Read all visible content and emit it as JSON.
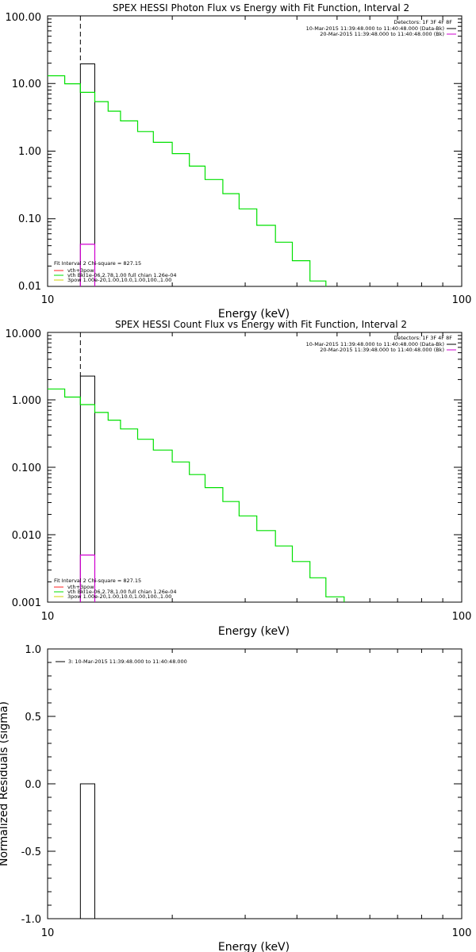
{
  "chart_data": [
    {
      "type": "line",
      "title": "SPEX HESSI Photon Flux vs Energy with Fit Function, Interval 2",
      "xlabel": "Energy (keV)",
      "ylabel": "",
      "xscale": "log",
      "yscale": "log",
      "xlim": [
        10,
        100
      ],
      "ylim": [
        0.01,
        100
      ],
      "x_ticks": [
        "10",
        "100"
      ],
      "y_ticks": [
        "0.01",
        "0.10",
        "1.00",
        "10.00",
        "100.00"
      ],
      "grid": false,
      "energy_edges": [
        10,
        11,
        12,
        13,
        14,
        15,
        16.5,
        18,
        20,
        22,
        24,
        26.5,
        29,
        32,
        35.5,
        39,
        43,
        47
      ],
      "series": [
        {
          "name": "vth BkI1e-06,2.78,1.00  full chian 1.26e-04",
          "color": "#00e000",
          "values": [
            13,
            9.9,
            7.4,
            5.4,
            3.9,
            2.8,
            1.95,
            1.35,
            0.92,
            0.6,
            0.38,
            0.235,
            0.14,
            0.08,
            0.045,
            0.024,
            0.012
          ]
        },
        {
          "name": "vth+3pow",
          "color": "#d000d0",
          "x_range": [
            12,
            13
          ],
          "values": [
            0.042
          ]
        }
      ],
      "data_bar": {
        "x_range": [
          12,
          13
        ],
        "value": 19.5
      },
      "dashed_line_x": 12,
      "legend_left": {
        "header": "Fit Interval 2   Chi-square = 827.15",
        "entries": [
          {
            "label": "vth+3pow",
            "color": "#ff2020"
          },
          {
            "label": "vth BkI1e-06,2.78,1.00  full chian 1.26e-04",
            "color": "#00e000"
          },
          {
            "label": "3pow  1.00e-20,1.00,10.0,1.00,100.,1.00",
            "color": "#d0d000"
          }
        ]
      },
      "legend_right": {
        "header": "Detectors: 1F 3F 4F 8F",
        "entries": [
          {
            "label": "10-Mar-2015 11:39:48.000 to 11:40:48.000 (Data-Bk)",
            "color": "#000000"
          },
          {
            "label": "20-Mar-2015 11:39:48.000 to 11:40:48.000 (Bk)",
            "color": "#d000d0"
          }
        ]
      }
    },
    {
      "type": "line",
      "title": "SPEX HESSI Count Flux vs Energy with Fit Function, Interval 2",
      "xlabel": "Energy (keV)",
      "ylabel": "",
      "xscale": "log",
      "yscale": "log",
      "xlim": [
        10,
        100
      ],
      "ylim": [
        0.001,
        10
      ],
      "x_ticks": [
        "10",
        "100"
      ],
      "y_ticks": [
        "0.001",
        "0.010",
        "0.100",
        "1.000",
        "10.000"
      ],
      "grid": false,
      "energy_edges": [
        10,
        11,
        12,
        13,
        14,
        15,
        16.5,
        18,
        20,
        22,
        24,
        26.5,
        29,
        32,
        35.5,
        39,
        43,
        47,
        52
      ],
      "series": [
        {
          "name": "vth BkI1e-06,2.78,1.00  full chian 1.26e-04",
          "color": "#00e000",
          "values": [
            1.45,
            1.1,
            0.85,
            0.65,
            0.5,
            0.37,
            0.26,
            0.18,
            0.12,
            0.078,
            0.05,
            0.031,
            0.019,
            0.0115,
            0.0068,
            0.004,
            0.0023,
            0.0012
          ]
        },
        {
          "name": "vth+3pow",
          "color": "#d000d0",
          "x_range": [
            12,
            13
          ],
          "values": [
            0.005
          ]
        }
      ],
      "data_bar": {
        "x_range": [
          12,
          13
        ],
        "value": 2.25
      },
      "dashed_line_x": 12,
      "legend_left": {
        "header": "Fit Interval 2   Chi-square = 827.15",
        "entries": [
          {
            "label": "vth+3pow",
            "color": "#ff2020"
          },
          {
            "label": "vth BkI1e-06,2.78,1.00  full chian 1.26e-04",
            "color": "#00e000"
          },
          {
            "label": "3pow  1.00e-20,1.00,10.0,1.00,100.,1.00",
            "color": "#d0d000"
          }
        ]
      },
      "legend_right": {
        "header": "Detectors: 1F 3F 4F 8F",
        "entries": [
          {
            "label": "10-Mar-2015 11:39:48.000 to 11:40:48.000 (Data-Bk)",
            "color": "#000000"
          },
          {
            "label": "20-Mar-2015 11:39:48.000 to 11:40:48.000 (Bk)",
            "color": "#d000d0"
          }
        ]
      }
    },
    {
      "type": "line",
      "title": "",
      "xlabel": "Energy (keV)",
      "ylabel": "Normalized Residuals (sigma)",
      "xscale": "log",
      "yscale": "linear",
      "xlim": [
        10,
        100
      ],
      "ylim": [
        -1,
        1
      ],
      "x_ticks": [
        "10",
        "100"
      ],
      "y_ticks": [
        "-1.0",
        "-0.5",
        "0.0",
        "0.5",
        "1.0"
      ],
      "grid": false,
      "residual_bar": {
        "x_range": [
          12,
          13
        ],
        "from": 0.0,
        "to": -1.0
      },
      "legend_left": {
        "entries": [
          {
            "label": "3: 10-Mar-2015 11:39:48.000 to 11:40:48.000",
            "color": "#000000"
          }
        ]
      }
    }
  ]
}
